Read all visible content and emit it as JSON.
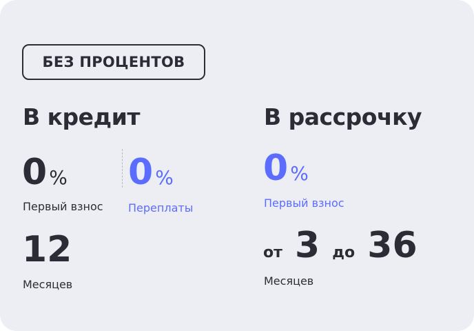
{
  "colors": {
    "text": "#2b2c35",
    "accent": "#5b6cff",
    "background": "#eceef3"
  },
  "badge": "БЕЗ ПРОЦЕНТОВ",
  "credit": {
    "title": "В кредит",
    "down_payment": {
      "value": "0",
      "unit": "%",
      "label": "Первый взнос"
    },
    "overpayment": {
      "value": "0",
      "unit": "%",
      "label": "Переплаты"
    },
    "term": {
      "value": "12",
      "label": "Месяцев"
    }
  },
  "installment": {
    "title": "В рассрочку",
    "down_payment": {
      "value": "0",
      "unit": "%",
      "label": "Первый взнос"
    },
    "term": {
      "from_word": "от",
      "from": "3",
      "to_word": "до",
      "to": "36",
      "label": "Месяцев"
    }
  }
}
